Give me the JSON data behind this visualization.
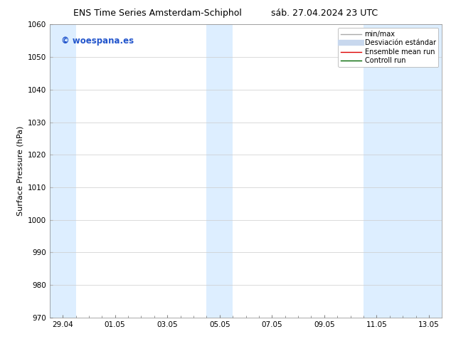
{
  "title_left": "ENS Time Series Amsterdam-Schiphol",
  "title_right": "sáb. 27.04.2024 23 UTC",
  "ylabel": "Surface Pressure (hPa)",
  "ylim": [
    970,
    1060
  ],
  "yticks": [
    970,
    980,
    990,
    1000,
    1010,
    1020,
    1030,
    1040,
    1050,
    1060
  ],
  "x_tick_labels": [
    "29.04",
    "01.05",
    "03.05",
    "05.05",
    "07.05",
    "09.05",
    "11.05",
    "13.05"
  ],
  "x_tick_positions": [
    0,
    2,
    4,
    6,
    8,
    10,
    12,
    14
  ],
  "x_minor_positions": [
    0,
    0.5,
    1,
    1.5,
    2,
    2.5,
    3,
    3.5,
    4,
    4.5,
    5,
    5.5,
    6,
    6.5,
    7,
    7.5,
    8,
    8.5,
    9,
    9.5,
    10,
    10.5,
    11,
    11.5,
    12,
    12.5,
    13,
    13.5,
    14
  ],
  "shaded_bands": [
    {
      "xmin": -0.5,
      "xmax": 0.5
    },
    {
      "xmin": 5.5,
      "xmax": 6.5
    },
    {
      "xmin": 11.5,
      "xmax": 14.5
    }
  ],
  "band_color": "#ddeeff",
  "watermark_text": "© woespana.es",
  "watermark_color": "#2255cc",
  "legend_entries": [
    {
      "label": "min/max",
      "color": "#aaaaaa",
      "lw": 1.0,
      "style": "solid"
    },
    {
      "label": "Desviación estándar",
      "color": "#c8d8ee",
      "lw": 6,
      "style": "solid"
    },
    {
      "label": "Ensemble mean run",
      "color": "#dd0000",
      "lw": 1.0,
      "style": "solid"
    },
    {
      "label": "Controll run",
      "color": "#006600",
      "lw": 1.0,
      "style": "solid"
    }
  ],
  "background_color": "#ffffff",
  "plot_bg_color": "#ffffff",
  "grid_color": "#cccccc",
  "title_fontsize": 9,
  "label_fontsize": 8,
  "tick_fontsize": 7.5,
  "watermark_fontsize": 8.5,
  "legend_fontsize": 7,
  "xlim": [
    -0.5,
    14.5
  ]
}
